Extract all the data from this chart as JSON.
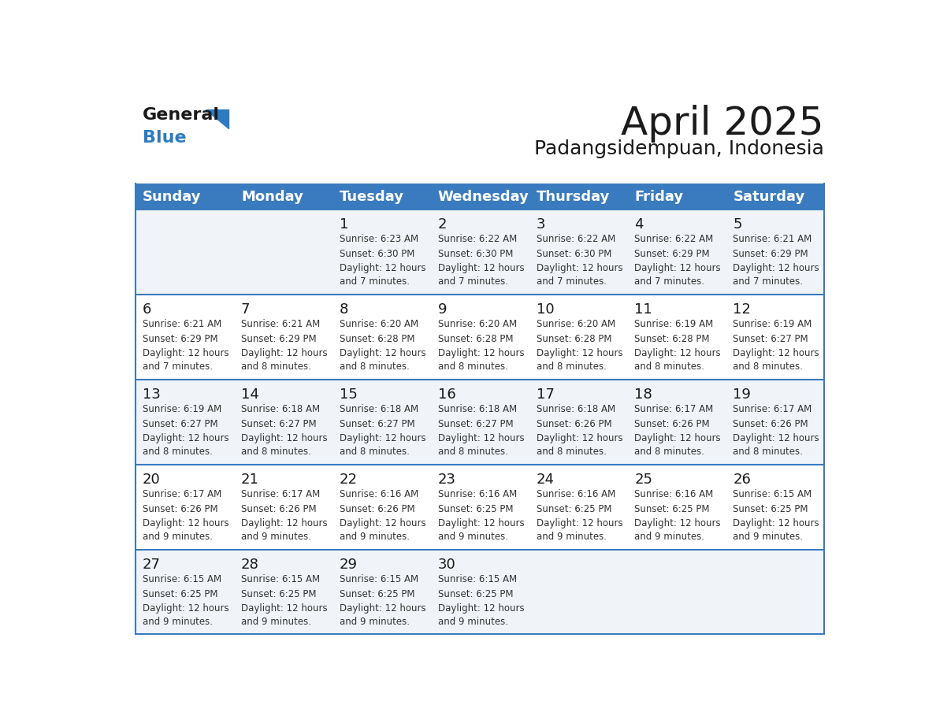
{
  "title": "April 2025",
  "subtitle": "Padangsidempuan, Indonesia",
  "header_bg_color": "#3a7bbf",
  "header_text_color": "#ffffff",
  "day_names": [
    "Sunday",
    "Monday",
    "Tuesday",
    "Wednesday",
    "Thursday",
    "Friday",
    "Saturday"
  ],
  "title_color": "#1a1a1a",
  "subtitle_color": "#1a1a1a",
  "cell_text_color": "#333333",
  "cell_day_color": "#1a1a1a",
  "border_color": "#3a7bbf",
  "alt_row_bg": "#f0f4f8",
  "normal_row_bg": "#ffffff",
  "general_black": "#1a1a1a",
  "general_blue": "#2d7cc1",
  "calendar_data": [
    [
      null,
      null,
      {
        "day": 1,
        "sunrise": "6:23 AM",
        "sunset": "6:30 PM",
        "daylight": "12 hours and 7 minutes."
      },
      {
        "day": 2,
        "sunrise": "6:22 AM",
        "sunset": "6:30 PM",
        "daylight": "12 hours and 7 minutes."
      },
      {
        "day": 3,
        "sunrise": "6:22 AM",
        "sunset": "6:30 PM",
        "daylight": "12 hours and 7 minutes."
      },
      {
        "day": 4,
        "sunrise": "6:22 AM",
        "sunset": "6:29 PM",
        "daylight": "12 hours and 7 minutes."
      },
      {
        "day": 5,
        "sunrise": "6:21 AM",
        "sunset": "6:29 PM",
        "daylight": "12 hours and 7 minutes."
      }
    ],
    [
      {
        "day": 6,
        "sunrise": "6:21 AM",
        "sunset": "6:29 PM",
        "daylight": "12 hours and 7 minutes."
      },
      {
        "day": 7,
        "sunrise": "6:21 AM",
        "sunset": "6:29 PM",
        "daylight": "12 hours and 8 minutes."
      },
      {
        "day": 8,
        "sunrise": "6:20 AM",
        "sunset": "6:28 PM",
        "daylight": "12 hours and 8 minutes."
      },
      {
        "day": 9,
        "sunrise": "6:20 AM",
        "sunset": "6:28 PM",
        "daylight": "12 hours and 8 minutes."
      },
      {
        "day": 10,
        "sunrise": "6:20 AM",
        "sunset": "6:28 PM",
        "daylight": "12 hours and 8 minutes."
      },
      {
        "day": 11,
        "sunrise": "6:19 AM",
        "sunset": "6:28 PM",
        "daylight": "12 hours and 8 minutes."
      },
      {
        "day": 12,
        "sunrise": "6:19 AM",
        "sunset": "6:27 PM",
        "daylight": "12 hours and 8 minutes."
      }
    ],
    [
      {
        "day": 13,
        "sunrise": "6:19 AM",
        "sunset": "6:27 PM",
        "daylight": "12 hours and 8 minutes."
      },
      {
        "day": 14,
        "sunrise": "6:18 AM",
        "sunset": "6:27 PM",
        "daylight": "12 hours and 8 minutes."
      },
      {
        "day": 15,
        "sunrise": "6:18 AM",
        "sunset": "6:27 PM",
        "daylight": "12 hours and 8 minutes."
      },
      {
        "day": 16,
        "sunrise": "6:18 AM",
        "sunset": "6:27 PM",
        "daylight": "12 hours and 8 minutes."
      },
      {
        "day": 17,
        "sunrise": "6:18 AM",
        "sunset": "6:26 PM",
        "daylight": "12 hours and 8 minutes."
      },
      {
        "day": 18,
        "sunrise": "6:17 AM",
        "sunset": "6:26 PM",
        "daylight": "12 hours and 8 minutes."
      },
      {
        "day": 19,
        "sunrise": "6:17 AM",
        "sunset": "6:26 PM",
        "daylight": "12 hours and 8 minutes."
      }
    ],
    [
      {
        "day": 20,
        "sunrise": "6:17 AM",
        "sunset": "6:26 PM",
        "daylight": "12 hours and 9 minutes."
      },
      {
        "day": 21,
        "sunrise": "6:17 AM",
        "sunset": "6:26 PM",
        "daylight": "12 hours and 9 minutes."
      },
      {
        "day": 22,
        "sunrise": "6:16 AM",
        "sunset": "6:26 PM",
        "daylight": "12 hours and 9 minutes."
      },
      {
        "day": 23,
        "sunrise": "6:16 AM",
        "sunset": "6:25 PM",
        "daylight": "12 hours and 9 minutes."
      },
      {
        "day": 24,
        "sunrise": "6:16 AM",
        "sunset": "6:25 PM",
        "daylight": "12 hours and 9 minutes."
      },
      {
        "day": 25,
        "sunrise": "6:16 AM",
        "sunset": "6:25 PM",
        "daylight": "12 hours and 9 minutes."
      },
      {
        "day": 26,
        "sunrise": "6:15 AM",
        "sunset": "6:25 PM",
        "daylight": "12 hours and 9 minutes."
      }
    ],
    [
      {
        "day": 27,
        "sunrise": "6:15 AM",
        "sunset": "6:25 PM",
        "daylight": "12 hours and 9 minutes."
      },
      {
        "day": 28,
        "sunrise": "6:15 AM",
        "sunset": "6:25 PM",
        "daylight": "12 hours and 9 minutes."
      },
      {
        "day": 29,
        "sunrise": "6:15 AM",
        "sunset": "6:25 PM",
        "daylight": "12 hours and 9 minutes."
      },
      {
        "day": 30,
        "sunrise": "6:15 AM",
        "sunset": "6:25 PM",
        "daylight": "12 hours and 9 minutes."
      },
      null,
      null,
      null
    ]
  ]
}
